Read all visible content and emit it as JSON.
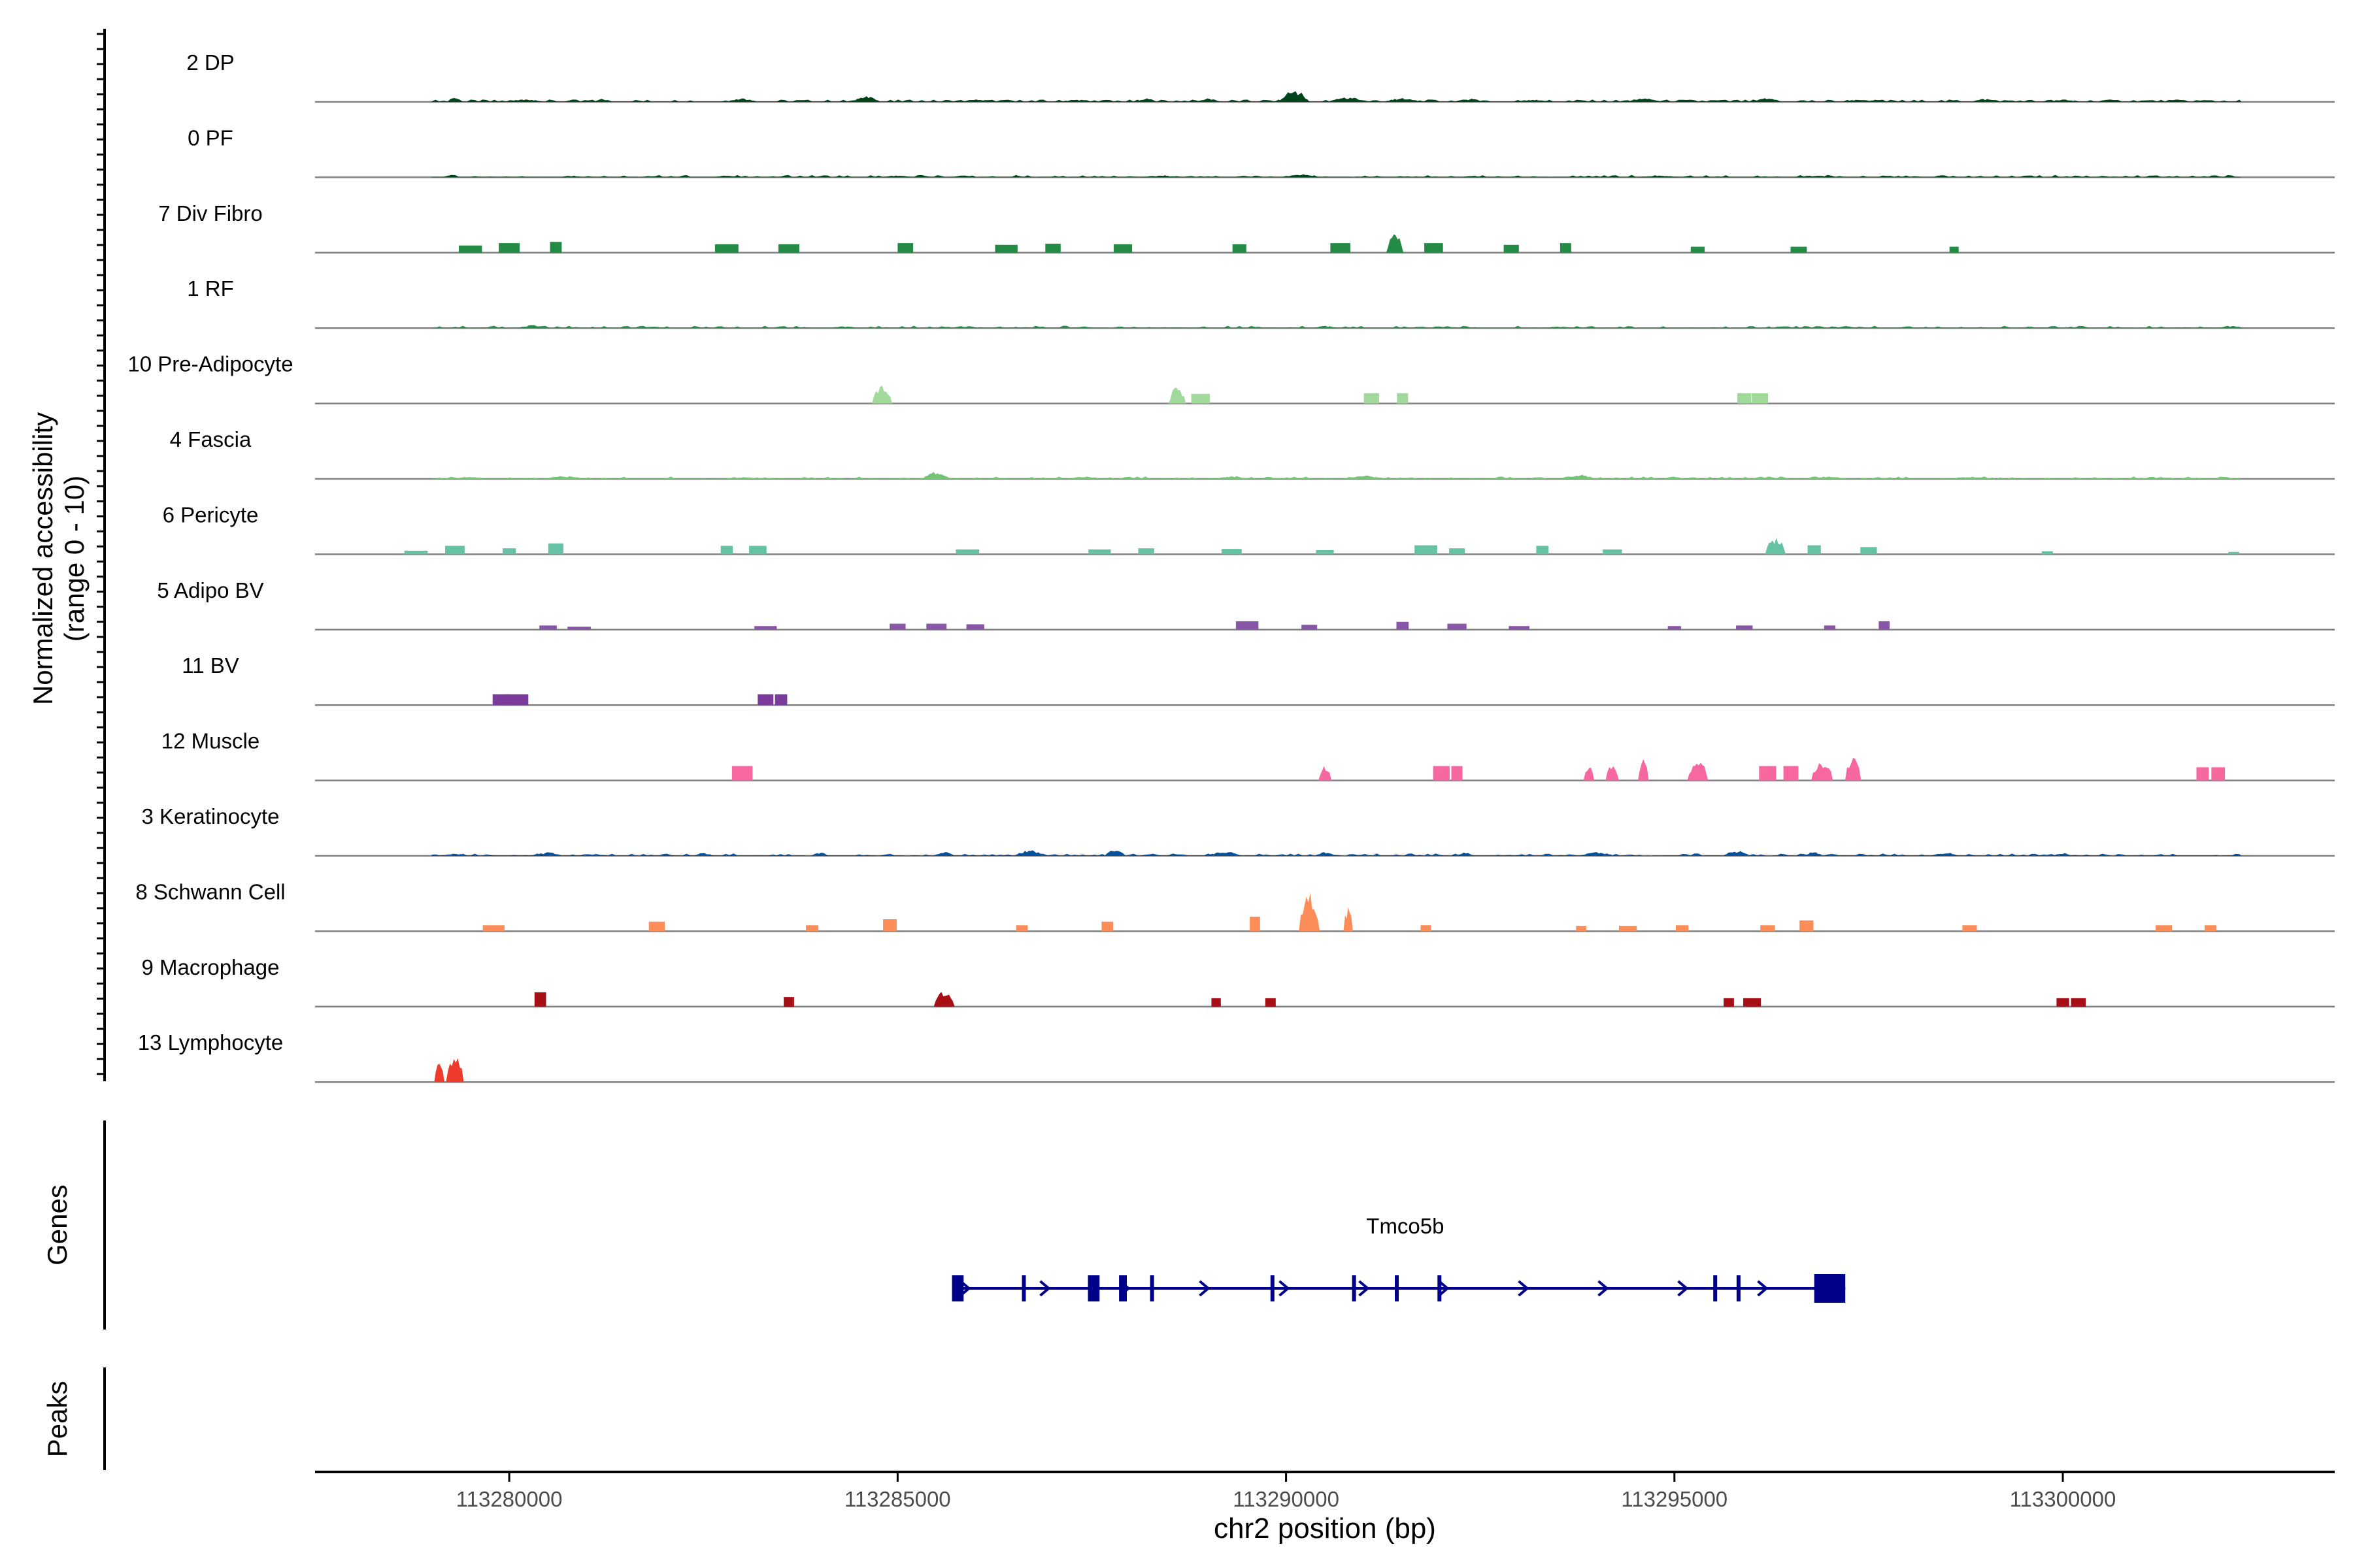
{
  "chart_data": {
    "type": "area",
    "y_axis_label_line1": "Normalized accessibility",
    "y_axis_label_line2": "(range 0 - 10)",
    "x_axis_label": "chr2 position (bp)",
    "x_range": [
      113277500,
      113303500
    ],
    "x_ticks": [
      "113280000",
      "113285000",
      "113290000",
      "113295000",
      "113300000"
    ],
    "x_tick_values": [
      113280000,
      113285000,
      113290000,
      113295000,
      113300000
    ],
    "y_range": [
      0,
      10
    ],
    "tracks": [
      {
        "name": "2 DP",
        "color": "#00441b",
        "style": "broad",
        "range": [
          113279000,
          113302300
        ],
        "peaks": [
          [
            113279300,
            0.7
          ],
          [
            113280200,
            0.5
          ],
          [
            113281200,
            0.5
          ],
          [
            113283000,
            0.6
          ],
          [
            113284600,
            1.2
          ],
          [
            113286000,
            0.5
          ],
          [
            113287300,
            0.4
          ],
          [
            113288200,
            0.6
          ],
          [
            113289000,
            0.6
          ],
          [
            113290100,
            2.2
          ],
          [
            113290800,
            0.8
          ],
          [
            113291500,
            0.7
          ],
          [
            113292400,
            0.6
          ],
          [
            113293200,
            0.4
          ],
          [
            113294600,
            0.6
          ],
          [
            113296200,
            0.7
          ],
          [
            113297400,
            0.4
          ],
          [
            113299000,
            0.5
          ],
          [
            113300000,
            0.4
          ]
        ]
      },
      {
        "name": "0 PF",
        "color": "#00441b",
        "style": "broad",
        "range": [
          113279000,
          113302300
        ],
        "peaks": [
          [
            113280800,
            0.3
          ],
          [
            113282800,
            0.3
          ],
          [
            113285000,
            0.3
          ],
          [
            113288400,
            0.3
          ],
          [
            113290200,
            0.5
          ],
          [
            113292400,
            0.3
          ],
          [
            113294800,
            0.3
          ],
          [
            113296800,
            0.3
          ]
        ]
      },
      {
        "name": "7 Div Fibro",
        "color": "#238b45",
        "style": "blocky",
        "range": [
          113279000,
          113302300
        ],
        "peaks": [
          [
            113279500,
            1.2
          ],
          [
            113280000,
            1.6
          ],
          [
            113280600,
            1.8
          ],
          [
            113282800,
            1.4
          ],
          [
            113283600,
            1.4
          ],
          [
            113285100,
            1.6
          ],
          [
            113286400,
            1.3
          ],
          [
            113287000,
            1.5
          ],
          [
            113287900,
            1.4
          ],
          [
            113289400,
            1.4
          ],
          [
            113290700,
            1.6
          ],
          [
            113291400,
            3.2
          ],
          [
            113291900,
            1.6
          ],
          [
            113292900,
            1.3
          ],
          [
            113293600,
            1.6
          ],
          [
            113295300,
            1.0
          ],
          [
            113296600,
            1.0
          ],
          [
            113298600,
            1.0
          ]
        ]
      },
      {
        "name": "1 RF",
        "color": "#238b45",
        "style": "broad",
        "range": [
          113279000,
          113302300
        ],
        "peaks": [
          [
            113280300,
            0.5
          ],
          [
            113281800,
            0.3
          ],
          [
            113284300,
            0.3
          ],
          [
            113287400,
            0.3
          ],
          [
            113290500,
            0.4
          ],
          [
            113293500,
            0.3
          ],
          [
            113297200,
            0.4
          ],
          [
            113302200,
            0.4
          ]
        ]
      },
      {
        "name": "10 Pre-Adipocyte",
        "color": "#a1d99b",
        "style": "blocky",
        "range": [
          113279000,
          113302300
        ],
        "peaks": [
          [
            113284800,
            3.0
          ],
          [
            113288600,
            2.8
          ],
          [
            113288900,
            1.6
          ],
          [
            113291100,
            1.7
          ],
          [
            113291500,
            1.7
          ],
          [
            113295900,
            1.7
          ],
          [
            113296100,
            1.7
          ]
        ]
      },
      {
        "name": "4 Fascia",
        "color": "#74c476",
        "style": "broad",
        "range": [
          113279000,
          113302300
        ],
        "peaks": [
          [
            113279500,
            0.4
          ],
          [
            113280700,
            0.5
          ],
          [
            113283000,
            0.3
          ],
          [
            113285500,
            1.3
          ],
          [
            113287400,
            0.4
          ],
          [
            113289300,
            0.5
          ],
          [
            113291000,
            0.6
          ],
          [
            113293800,
            0.7
          ],
          [
            113295000,
            0.4
          ],
          [
            113297000,
            0.4
          ],
          [
            113298800,
            0.4
          ],
          [
            113301300,
            0.3
          ]
        ]
      },
      {
        "name": "6 Pericyte",
        "color": "#66c2a4",
        "style": "blocky",
        "range": [
          113279000,
          113302300
        ],
        "peaks": [
          [
            113278800,
            0.6
          ],
          [
            113279300,
            1.4
          ],
          [
            113280000,
            1.0
          ],
          [
            113280600,
            1.8
          ],
          [
            113282800,
            1.4
          ],
          [
            113283200,
            1.4
          ],
          [
            113285900,
            0.8
          ],
          [
            113287600,
            0.8
          ],
          [
            113288200,
            1.0
          ],
          [
            113289300,
            0.9
          ],
          [
            113290500,
            0.7
          ],
          [
            113291800,
            1.5
          ],
          [
            113292200,
            1.0
          ],
          [
            113293300,
            1.4
          ],
          [
            113294200,
            0.8
          ],
          [
            113296300,
            3.0
          ],
          [
            113296800,
            1.5
          ],
          [
            113297500,
            1.2
          ],
          [
            113299800,
            0.5
          ],
          [
            113302200,
            0.4
          ]
        ]
      },
      {
        "name": "5 Adipo BV",
        "color": "#8856a7",
        "style": "blocky",
        "range": [
          113279000,
          113302300
        ],
        "peaks": [
          [
            113280500,
            0.7
          ],
          [
            113280900,
            0.5
          ],
          [
            113283300,
            0.6
          ],
          [
            113285000,
            1.0
          ],
          [
            113285500,
            1.0
          ],
          [
            113286000,
            0.9
          ],
          [
            113289500,
            1.4
          ],
          [
            113290300,
            0.8
          ],
          [
            113291500,
            1.3
          ],
          [
            113292200,
            1.0
          ],
          [
            113293000,
            0.6
          ],
          [
            113295000,
            0.6
          ],
          [
            113295900,
            0.7
          ],
          [
            113297000,
            0.7
          ],
          [
            113297700,
            1.4
          ]
        ]
      },
      {
        "name": "11 BV",
        "color": "#7a3b9a",
        "style": "blocky",
        "range": [
          113279000,
          113302300
        ],
        "peaks": [
          [
            113279900,
            1.8
          ],
          [
            113280100,
            1.8
          ],
          [
            113283300,
            1.8
          ],
          [
            113283500,
            1.8
          ]
        ]
      },
      {
        "name": "12 Muscle",
        "color": "#f768a1",
        "style": "blocky",
        "range": [
          113279000,
          113302300
        ],
        "peaks": [
          [
            113283000,
            2.4
          ],
          [
            113290500,
            2.6
          ],
          [
            113292000,
            2.4
          ],
          [
            113292200,
            2.4
          ],
          [
            113293900,
            2.6
          ],
          [
            113294200,
            2.6
          ],
          [
            113294600,
            3.6
          ],
          [
            113295300,
            3.6
          ],
          [
            113296200,
            2.4
          ],
          [
            113296500,
            2.4
          ],
          [
            113296900,
            3.6
          ],
          [
            113297300,
            4.6
          ],
          [
            113301800,
            2.2
          ],
          [
            113302000,
            2.2
          ]
        ]
      },
      {
        "name": "3 Keratinocyte",
        "color": "#08519c",
        "style": "broad",
        "range": [
          113279000,
          113302300
        ],
        "peaks": [
          [
            113279300,
            0.4
          ],
          [
            113280500,
            0.6
          ],
          [
            113282500,
            0.5
          ],
          [
            113284000,
            0.6
          ],
          [
            113285600,
            0.7
          ],
          [
            113286700,
            1.0
          ],
          [
            113287800,
            1.2
          ],
          [
            113289200,
            0.8
          ],
          [
            113290500,
            0.7
          ],
          [
            113292300,
            0.6
          ],
          [
            113294000,
            0.7
          ],
          [
            113295800,
            0.9
          ],
          [
            113296800,
            0.7
          ],
          [
            113298500,
            0.6
          ],
          [
            113300000,
            0.5
          ]
        ]
      },
      {
        "name": "8 Schwann Cell",
        "color": "#fc8d59",
        "style": "blocky",
        "range": [
          113279000,
          113302300
        ],
        "peaks": [
          [
            113279800,
            1.0
          ],
          [
            113281900,
            1.6
          ],
          [
            113283900,
            1.0
          ],
          [
            113284900,
            2.0
          ],
          [
            113286600,
            1.0
          ],
          [
            113287700,
            1.6
          ],
          [
            113289600,
            2.4
          ],
          [
            113290300,
            6.5
          ],
          [
            113290800,
            4.0
          ],
          [
            113291800,
            1.0
          ],
          [
            113293800,
            0.9
          ],
          [
            113294400,
            0.9
          ],
          [
            113295100,
            1.0
          ],
          [
            113296200,
            1.0
          ],
          [
            113296700,
            1.8
          ],
          [
            113298800,
            1.0
          ],
          [
            113301300,
            1.0
          ],
          [
            113301900,
            1.0
          ]
        ]
      },
      {
        "name": "9 Macrophage",
        "color": "#a50f15",
        "style": "blocky",
        "range": [
          113279000,
          113302300
        ],
        "peaks": [
          [
            113280400,
            2.4
          ],
          [
            113283600,
            1.6
          ],
          [
            113285600,
            2.6
          ],
          [
            113289100,
            1.4
          ],
          [
            113289800,
            1.4
          ],
          [
            113295700,
            1.4
          ],
          [
            113296000,
            1.4
          ],
          [
            113300000,
            1.4
          ],
          [
            113300200,
            1.4
          ]
        ]
      },
      {
        "name": "13 Lymphocyte",
        "color": "#ef3b2c",
        "style": "blocky",
        "range": [
          113279000,
          113302300
        ],
        "peaks": [
          [
            113279100,
            4.4
          ],
          [
            113279300,
            4.4
          ]
        ]
      }
    ],
    "gene_track_label": "Genes",
    "peaks_track_label": "Peaks",
    "gene": {
      "name": "Tmco5b",
      "start": 113285700,
      "end": 113297200,
      "strand": "+",
      "color": "#00008b",
      "exons": [
        [
          113285700,
          113285850
        ],
        [
          113286600,
          113286650
        ],
        [
          113287450,
          113287600
        ],
        [
          113287850,
          113287950
        ],
        [
          113288250,
          113288300
        ],
        [
          113289800,
          113289850
        ],
        [
          113290850,
          113290900
        ],
        [
          113291400,
          113291450
        ],
        [
          113291950,
          113292000
        ],
        [
          113295500,
          113295550
        ],
        [
          113295800,
          113295850
        ],
        [
          113296800,
          113297200
        ]
      ]
    }
  }
}
